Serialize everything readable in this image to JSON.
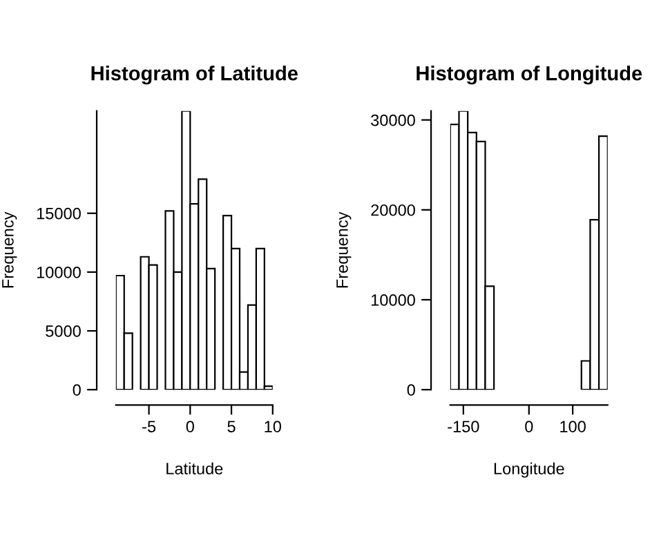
{
  "chart_data": [
    {
      "type": "histogram",
      "title": "Histogram of Latitude",
      "xlabel": "Latitude",
      "ylabel": "Frequency",
      "color": "#ffffff",
      "bins": [
        -9,
        -8,
        -7,
        -6,
        -5,
        -4,
        -3,
        -2,
        -1,
        0,
        1,
        2,
        3,
        4,
        5,
        6,
        7,
        8,
        9,
        10
      ],
      "values": [
        9700,
        4800,
        0,
        11300,
        10600,
        0,
        15200,
        10000,
        23700,
        15800,
        17900,
        10300,
        0,
        14800,
        12000,
        1500,
        7200,
        12000,
        300
      ],
      "xlim": [
        -9,
        10
      ],
      "xticks": [
        -5,
        0,
        5,
        10
      ],
      "ylim": [
        0,
        23700
      ],
      "yticks": [
        0,
        5000,
        10000,
        15000
      ],
      "grid": false
    },
    {
      "type": "histogram",
      "title": "Histogram of Longitude",
      "xlabel": "Longitude",
      "ylabel": "Frequency",
      "color": "#ffffff",
      "bins": [
        -180,
        -160,
        -140,
        -120,
        -100,
        -80,
        -60,
        -40,
        -20,
        0,
        20,
        40,
        60,
        80,
        100,
        120,
        140,
        160,
        180
      ],
      "values": [
        29500,
        31000,
        28600,
        27600,
        11500,
        0,
        0,
        0,
        0,
        0,
        0,
        0,
        0,
        0,
        0,
        3200,
        18900,
        28200
      ],
      "xlim": [
        -180,
        180
      ],
      "xticks": [
        -150,
        0,
        100
      ],
      "ylim": [
        0,
        31000
      ],
      "yticks": [
        0,
        10000,
        20000,
        30000
      ],
      "grid": false
    }
  ]
}
